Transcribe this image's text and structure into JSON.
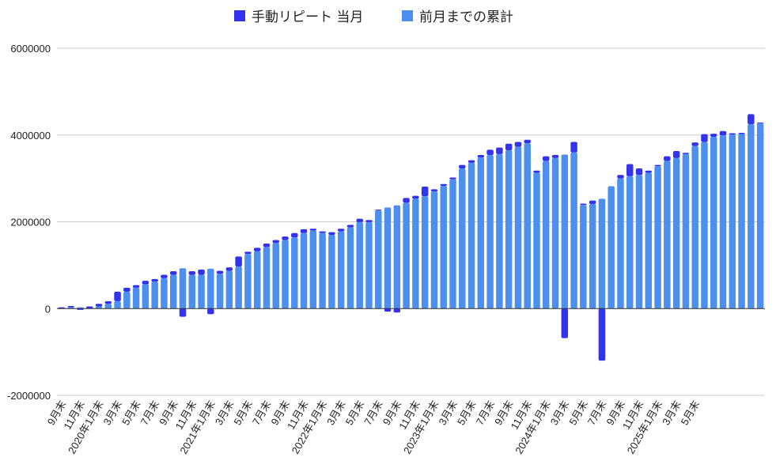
{
  "chart_data": {
    "type": "bar",
    "stacked": true,
    "legend_position": "top",
    "grid": true,
    "ylim": [
      -2000000,
      6000000
    ],
    "yticks": [
      -2000000,
      0,
      2000000,
      4000000,
      6000000
    ],
    "ytick_labels": [
      "-2000000",
      "0",
      "2000000",
      "4000000",
      "6000000"
    ],
    "xtick_labels": [
      "9月末",
      "11月末",
      "2020年1月末",
      "3月末",
      "5月末",
      "7月末",
      "9月末",
      "11月末",
      "2021年1月末",
      "3月末",
      "5月末",
      "7月末",
      "9月末",
      "11月末",
      "2022年1月末",
      "3月末",
      "5月末",
      "7月末",
      "9月末",
      "11月末",
      "2023年1月末",
      "3月末",
      "5月末",
      "7月末",
      "9月末",
      "11月末",
      "2024年1月末",
      "3月末",
      "5月末",
      "7月末",
      "9月末",
      "11月末",
      "2025年1月末",
      "3月末",
      "5月末"
    ],
    "series": [
      {
        "name": "手動リピート 当月",
        "color": "#3333ee",
        "values": [
          30000,
          30000,
          -30000,
          50000,
          60000,
          60000,
          220000,
          90000,
          60000,
          80000,
          60000,
          80000,
          80000,
          -190000,
          80000,
          120000,
          -130000,
          70000,
          80000,
          230000,
          50000,
          80000,
          80000,
          70000,
          80000,
          100000,
          90000,
          40000,
          40000,
          60000,
          60000,
          60000,
          80000,
          50000,
          20000,
          -70000,
          -90000,
          110000,
          70000,
          220000,
          50000,
          40000,
          40000,
          80000,
          60000,
          60000,
          120000,
          150000,
          150000,
          110000,
          80000,
          50000,
          110000,
          70000,
          -680000,
          240000,
          30000,
          80000,
          -1200000,
          0,
          80000,
          280000,
          150000,
          50000,
          30000,
          110000,
          160000,
          30000,
          80000,
          180000,
          70000,
          100000,
          30000,
          30000,
          230000,
          20000
        ]
      },
      {
        "name": "前月までの累計",
        "color": "#4d8fef",
        "values": [
          0,
          30000,
          30000,
          0,
          50000,
          110000,
          170000,
          390000,
          480000,
          560000,
          620000,
          700000,
          780000,
          930000,
          780000,
          780000,
          920000,
          800000,
          870000,
          970000,
          1260000,
          1320000,
          1420000,
          1510000,
          1580000,
          1640000,
          1740000,
          1800000,
          1740000,
          1700000,
          1780000,
          1870000,
          1990000,
          1990000,
          2260000,
          2330000,
          2380000,
          2440000,
          2530000,
          2590000,
          2700000,
          2830000,
          2980000,
          3230000,
          3360000,
          3480000,
          3540000,
          3560000,
          3650000,
          3730000,
          3810000,
          3130000,
          3400000,
          3470000,
          3550000,
          3600000,
          2390000,
          2410000,
          2530000,
          2820000,
          3000000,
          3050000,
          3080000,
          3130000,
          3280000,
          3400000,
          3470000,
          3560000,
          3750000,
          3840000,
          3960000,
          3990000,
          4010000,
          4020000,
          4250000,
          4270000
        ]
      }
    ]
  },
  "legend": {
    "items": [
      {
        "label": "手動リピート 当月",
        "color": "#3333ee"
      },
      {
        "label": "前月までの累計",
        "color": "#4d8fef"
      }
    ]
  }
}
